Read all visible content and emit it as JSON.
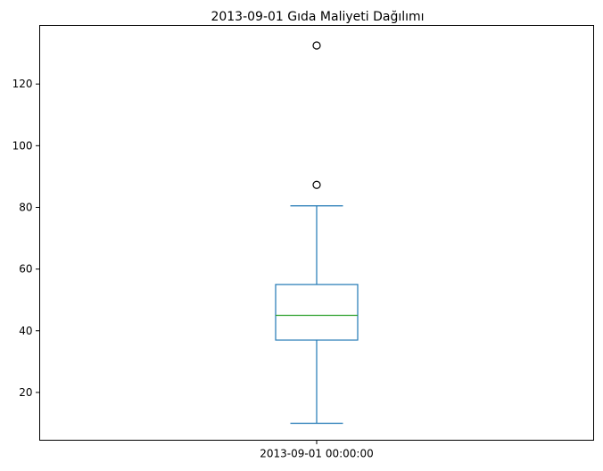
{
  "chart_data": {
    "type": "box",
    "title": "2013-09-01 Gıda Maliyeti Dağılımı",
    "xlabel": "",
    "ylabel": "",
    "categories": [
      "2013-09-01 00:00:00"
    ],
    "ylim": [
      4.5,
      139
    ],
    "yticks": [
      20,
      40,
      60,
      80,
      100,
      120
    ],
    "grid": false,
    "boxes": [
      {
        "category": "2013-09-01 00:00:00",
        "whisker_low": 10,
        "q1": 37,
        "median": 45,
        "q3": 55,
        "whisker_high": 80.5,
        "outliers": [
          87.3,
          132.5
        ]
      }
    ],
    "colors": {
      "box": "#1f77b4",
      "median": "#2ca02c",
      "outlier_edge": "#000000",
      "axes": "#000000"
    }
  }
}
